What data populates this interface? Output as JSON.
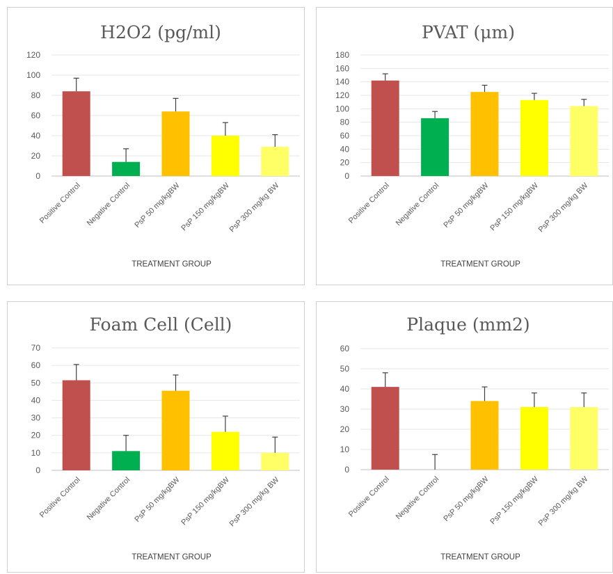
{
  "colors": {
    "positive_control": "#c0504d",
    "negative_control": "#00b050",
    "psp50": "#ffc000",
    "psp150": "#ffff00",
    "psp300": "#ffff66"
  },
  "chart_data": [
    {
      "type": "bar",
      "title": "H2O2 (pg/ml)",
      "xlabel": "TREATMENT GROUP",
      "ylabel": "",
      "categories": [
        "Positive Control",
        "Negative Control",
        "PsP 50 mg/kgBW",
        "PsP 150 mg/kgBW",
        "PsP 300 mg/kg BW"
      ],
      "values": [
        84,
        14,
        64,
        40,
        29
      ],
      "errors": [
        13,
        13,
        13,
        13,
        12
      ],
      "ylim": [
        0,
        120
      ],
      "yticks": [
        0,
        20,
        40,
        60,
        80,
        100,
        120
      ],
      "grid": true,
      "legend": "none"
    },
    {
      "type": "bar",
      "title": "PVAT (μm)",
      "xlabel": "TREATMENT GROUP",
      "ylabel": "",
      "categories": [
        "Positive Control",
        "Negative Control",
        "PsP 50 mg/kgBW",
        "PsP 150 mg/kgBW",
        "PsP 300 mg/kg BW"
      ],
      "values": [
        142,
        86,
        125,
        113,
        104
      ],
      "errors": [
        10,
        10,
        10,
        10,
        10
      ],
      "ylim": [
        0,
        180
      ],
      "yticks": [
        0,
        20,
        40,
        60,
        80,
        100,
        120,
        140,
        160,
        180
      ],
      "grid": true,
      "legend": "none"
    },
    {
      "type": "bar",
      "title": "Foam Cell (Cell)",
      "xlabel": "TREATMENT GROUP",
      "ylabel": "",
      "categories": [
        "Positive Control",
        "Negative Control",
        "PsP 50 mg/kgBW",
        "PsP 150 mg/kgBW",
        "PsP 300 mg/kg BW"
      ],
      "values": [
        51.5,
        11,
        45.5,
        22,
        10
      ],
      "errors": [
        9,
        9,
        9,
        9,
        9
      ],
      "ylim": [
        0,
        70
      ],
      "yticks": [
        0,
        10,
        20,
        30,
        40,
        50,
        60,
        70
      ],
      "grid": true,
      "legend": "none"
    },
    {
      "type": "bar",
      "title": "Plaque  (mm2)",
      "xlabel": "TREATMENT GROUP",
      "ylabel": "",
      "categories": [
        "Positive Control",
        "Negative Control",
        "PsP 50 mg/kgBW",
        "PsP 150 mg/kgBW",
        "PsP 300 mg/kg BW"
      ],
      "values": [
        41,
        0,
        34,
        31,
        31
      ],
      "errors": [
        7,
        7.5,
        7,
        7,
        7
      ],
      "ylim": [
        0,
        60
      ],
      "yticks": [
        0,
        10,
        20,
        30,
        40,
        50,
        60
      ],
      "grid": true,
      "legend": "none"
    }
  ]
}
